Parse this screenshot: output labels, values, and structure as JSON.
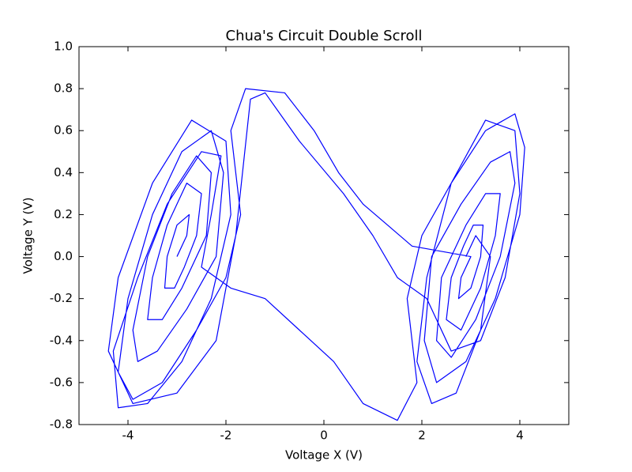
{
  "chart_data": {
    "type": "line",
    "title": "Chua's Circuit Double Scroll",
    "x_label": "Voltage X (V)",
    "y_label": "Voltage Y (V)",
    "color": "#0000ff",
    "xlim": [
      -5,
      5
    ],
    "ylim": [
      -0.8,
      1.0
    ],
    "xticks": [
      -4,
      -2,
      0,
      2,
      4
    ],
    "yticks": [
      -0.8,
      -0.6,
      -0.4,
      -0.2,
      {
        "value": 0,
        "label": "0.0"
      },
      0.2,
      0.4,
      0.6,
      0.8,
      {
        "value": 1,
        "label": "1.0"
      }
    ],
    "x": [
      -3,
      -2.8,
      -2.75,
      -3,
      -3.2,
      -3.25,
      -3.05,
      -2.85,
      -2.6,
      -2.5,
      -2.8,
      -3.2,
      -3.5,
      -3.6,
      -3.3,
      -2.9,
      -2.4,
      -2.3,
      -2.6,
      -3.1,
      -3.6,
      -3.9,
      -3.8,
      -3.4,
      -2.8,
      -2.2,
      -2.05,
      -2.3,
      -2.9,
      -3.5,
      -4,
      -4.2,
      -3.9,
      -3.3,
      -2.6,
      -2,
      -1.7,
      -1.9,
      -1.6,
      -0.8,
      -0.2,
      0.3,
      0.8,
      1.3,
      1.8,
      3,
      2.8,
      2.75,
      3,
      3.2,
      3.25,
      3.05,
      2.85,
      2.6,
      2.5,
      2.8,
      3.2,
      3.5,
      3.6,
      3.3,
      2.9,
      2.4,
      2.3,
      2.6,
      3.1,
      3.6,
      3.9,
      3.8,
      3.4,
      2.8,
      2.2,
      2.05,
      2.3,
      2.9,
      3.5,
      4,
      4.1,
      3.9,
      3.3,
      2.6,
      2,
      1.7,
      1.9,
      1.5,
      0.8,
      0.2,
      -0.5,
      -1.2,
      -1.9,
      -2.5,
      -2.3,
      -2.1,
      -2.5,
      -3.2,
      -3.8,
      -4.3,
      -4.2,
      -3.6,
      -2.9,
      -2.3,
      -1.9,
      -2,
      -2.7,
      -3.5,
      -4.2,
      -4.4,
      -3.9,
      -3,
      -2.2,
      -1.8,
      -1.5,
      -1.2,
      -0.5,
      0.4,
      1,
      1.5,
      2.1,
      2.6,
      3.2,
      3.7,
      4,
      3.9,
      3.3,
      2.6,
      2.1,
      1.9,
      2.2,
      2.7,
      3.2,
      3.4,
      3.1,
      2.9
    ],
    "values": [
      0,
      0.1,
      0.2,
      0.15,
      0,
      -0.15,
      -0.15,
      -0.05,
      0.1,
      0.3,
      0.35,
      0.15,
      -0.1,
      -0.3,
      -0.3,
      -0.15,
      0.1,
      0.4,
      0.48,
      0.3,
      0,
      -0.35,
      -0.5,
      -0.45,
      -0.25,
      0,
      0.4,
      0.6,
      0.5,
      0.2,
      -0.2,
      -0.55,
      -0.68,
      -0.6,
      -0.35,
      -0.1,
      0.2,
      0.6,
      0.8,
      0.78,
      0.6,
      0.4,
      0.25,
      0.15,
      0.05,
      0,
      -0.1,
      -0.2,
      -0.15,
      0,
      0.15,
      0.15,
      0.05,
      -0.1,
      -0.3,
      -0.35,
      -0.15,
      0.1,
      0.3,
      0.3,
      0.15,
      -0.1,
      -0.4,
      -0.48,
      -0.3,
      0,
      0.35,
      0.5,
      0.45,
      0.25,
      0,
      -0.4,
      -0.6,
      -0.5,
      -0.2,
      0.2,
      0.52,
      0.68,
      0.6,
      0.35,
      0.1,
      -0.2,
      -0.6,
      -0.78,
      -0.7,
      -0.5,
      -0.35,
      -0.2,
      -0.15,
      -0.05,
      0.2,
      0.48,
      0.5,
      0.25,
      -0.1,
      -0.45,
      -0.72,
      -0.7,
      -0.5,
      -0.2,
      0.2,
      0.55,
      0.65,
      0.35,
      -0.1,
      -0.45,
      -0.7,
      -0.65,
      -0.4,
      0.1,
      0.75,
      0.78,
      0.55,
      0.3,
      0.1,
      -0.1,
      -0.2,
      -0.45,
      -0.4,
      -0.1,
      0.3,
      0.6,
      0.65,
      0.35,
      -0.1,
      -0.5,
      -0.7,
      -0.65,
      -0.35,
      0,
      0.1,
      0
    ]
  }
}
